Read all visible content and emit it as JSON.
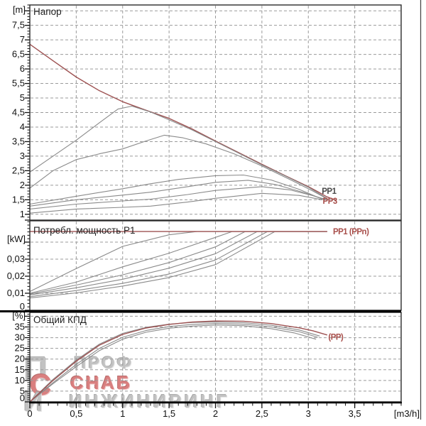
{
  "figure": {
    "background": "#ffffff",
    "plot_border_color": "#2b2b2b",
    "grid_color": "#9b9b9b",
    "axis_color": "#111111",
    "tick_label_color": "#111111",
    "series_colors": {
      "red": "#9e5252",
      "gray": "#8a8a8a"
    },
    "end_label_colors": {
      "red": "#a84f4b",
      "dark": "#4a4a4a"
    },
    "xlabel": "[m3/h]",
    "xlim": [
      0,
      4
    ],
    "xticks": [
      0,
      0.5,
      1,
      1.5,
      2,
      2.5,
      3,
      3.5
    ],
    "xtick_labels": [
      "0",
      "0,5",
      "1",
      "1,5",
      "2",
      "2,5",
      "3",
      "3,5"
    ],
    "x_minor_step": 0.1
  },
  "chart_data": [
    {
      "id": "head",
      "type": "line",
      "title": "Напор",
      "unit": "[m]",
      "ylim": [
        0.8,
        8.2
      ],
      "grid_y": [
        1,
        1.5,
        2,
        2.5,
        3,
        3.5,
        4,
        4.5,
        5,
        5.5,
        6,
        6.5,
        7,
        7.5,
        8
      ],
      "yticks": [
        1,
        1.5,
        2,
        2.5,
        3,
        3.5,
        4,
        4.5,
        5,
        5.5,
        6,
        6.5,
        7,
        7.5
      ],
      "ytick_labels": [
        "1",
        "1,5",
        "2",
        "2,5",
        "3",
        "3,5",
        "4",
        "4,5",
        "5",
        "5,5",
        "6",
        "6,5",
        "7",
        "7,5"
      ],
      "y_minor_step": 0.1,
      "series": [
        {
          "name": "max-speed",
          "color": "red",
          "points": [
            [
              0,
              6.85
            ],
            [
              0.25,
              6.28
            ],
            [
              0.5,
              5.72
            ],
            [
              0.75,
              5.25
            ],
            [
              1,
              4.87
            ],
            [
              1.25,
              4.58
            ],
            [
              1.5,
              4.3
            ],
            [
              1.75,
              3.93
            ],
            [
              2,
              3.52
            ],
            [
              2.25,
              3.12
            ],
            [
              2.5,
              2.72
            ],
            [
              2.75,
              2.33
            ],
            [
              3,
              1.95
            ],
            [
              3.1,
              1.78
            ],
            [
              3.2,
              1.6
            ],
            [
              3.3,
              1.48
            ]
          ]
        },
        {
          "name": "pp3",
          "color": "gray",
          "points": [
            [
              0,
              2.45
            ],
            [
              0.25,
              3.0
            ],
            [
              0.5,
              3.55
            ],
            [
              0.75,
              4.15
            ],
            [
              0.95,
              4.62
            ],
            [
              1.1,
              4.72
            ],
            [
              1.3,
              4.52
            ],
            [
              1.5,
              4.25
            ],
            [
              1.75,
              3.9
            ],
            [
              2,
              3.5
            ],
            [
              2.25,
              3.1
            ],
            [
              2.5,
              2.7
            ],
            [
              2.75,
              2.32
            ],
            [
              3,
              1.93
            ],
            [
              3.2,
              1.55
            ]
          ]
        },
        {
          "name": "pp2",
          "color": "gray",
          "points": [
            [
              0,
              1.9
            ],
            [
              0.25,
              2.5
            ],
            [
              0.5,
              2.88
            ],
            [
              0.75,
              3.08
            ],
            [
              1,
              3.25
            ],
            [
              1.25,
              3.52
            ],
            [
              1.45,
              3.72
            ],
            [
              1.65,
              3.63
            ],
            [
              1.9,
              3.42
            ],
            [
              2.2,
              3.08
            ],
            [
              2.5,
              2.66
            ],
            [
              2.8,
              2.2
            ],
            [
              3.05,
              1.8
            ],
            [
              3.22,
              1.5
            ]
          ]
        },
        {
          "name": "low-1",
          "color": "gray",
          "points": [
            [
              0,
              1.35
            ],
            [
              0.5,
              1.62
            ],
            [
              1,
              1.88
            ],
            [
              1.3,
              2.05
            ],
            [
              1.6,
              2.2
            ],
            [
              2,
              2.33
            ],
            [
              2.3,
              2.35
            ],
            [
              2.6,
              2.18
            ],
            [
              2.9,
              1.86
            ],
            [
              3.15,
              1.52
            ]
          ]
        },
        {
          "name": "low-2",
          "color": "gray",
          "points": [
            [
              0,
              1.28
            ],
            [
              0.5,
              1.5
            ],
            [
              1,
              1.66
            ],
            [
              1.3,
              1.76
            ],
            [
              1.7,
              1.95
            ],
            [
              2,
              2.1
            ],
            [
              2.35,
              2.17
            ],
            [
              2.65,
              2.02
            ],
            [
              2.95,
              1.75
            ],
            [
              3.18,
              1.5
            ]
          ]
        },
        {
          "name": "low-3",
          "color": "gray",
          "points": [
            [
              0,
              1.18
            ],
            [
              0.5,
              1.35
            ],
            [
              1,
              1.46
            ],
            [
              1.3,
              1.52
            ],
            [
              1.7,
              1.68
            ],
            [
              2,
              1.82
            ],
            [
              2.5,
              1.95
            ],
            [
              2.8,
              1.84
            ],
            [
              3.05,
              1.64
            ],
            [
              3.2,
              1.5
            ]
          ]
        },
        {
          "name": "low-4",
          "color": "gray",
          "points": [
            [
              0,
              1.04
            ],
            [
              0.5,
              1.18
            ],
            [
              1,
              1.24
            ],
            [
              1.3,
              1.28
            ],
            [
              1.7,
              1.42
            ],
            [
              2,
              1.55
            ],
            [
              2.5,
              1.72
            ],
            [
              2.9,
              1.65
            ],
            [
              3.15,
              1.5
            ]
          ]
        }
      ],
      "end_labels": [
        {
          "text": "РР1",
          "x": 3.13,
          "y": 1.8,
          "color": "dark"
        },
        {
          "text": "РР3",
          "x": 3.14,
          "y": 1.46,
          "color": "red"
        }
      ]
    },
    {
      "id": "power",
      "type": "line",
      "title": "Потребл. мощность P1",
      "unit": "[kW]",
      "ylim": [
        0,
        0.0525
      ],
      "grid_y": [
        0.01,
        0.02,
        0.03,
        0.04
      ],
      "yticks": [
        0,
        0.01,
        0.02,
        0.03
      ],
      "ytick_labels": [
        "0",
        "0,01",
        "0,02",
        "0,03"
      ],
      "y_minor_step": 0.002,
      "series": [
        {
          "name": "g1",
          "color": "gray",
          "points": [
            [
              0,
              0.011
            ],
            [
              0.5,
              0.0245
            ],
            [
              1,
              0.0375
            ],
            [
              1.5,
              0.0443
            ],
            [
              1.8,
              0.0462
            ],
            [
              3.2,
              0.0462
            ]
          ]
        },
        {
          "name": "g2",
          "color": "gray",
          "points": [
            [
              0,
              0.01
            ],
            [
              0.5,
              0.0165
            ],
            [
              1,
              0.0255
            ],
            [
              1.5,
              0.0335
            ],
            [
              2,
              0.0428
            ],
            [
              2.18,
              0.0462
            ],
            [
              3.2,
              0.0462
            ]
          ]
        },
        {
          "name": "g3",
          "color": "gray",
          "points": [
            [
              0,
              0.0095
            ],
            [
              0.5,
              0.0148
            ],
            [
              1,
              0.0208
            ],
            [
              1.5,
              0.028
            ],
            [
              2,
              0.0372
            ],
            [
              2.32,
              0.0462
            ],
            [
              3.2,
              0.0462
            ]
          ]
        },
        {
          "name": "g4",
          "color": "gray",
          "points": [
            [
              0,
              0.009
            ],
            [
              0.5,
              0.0132
            ],
            [
              1,
              0.0182
            ],
            [
              1.5,
              0.0247
            ],
            [
              2,
              0.0332
            ],
            [
              2.45,
              0.0462
            ],
            [
              3.2,
              0.0462
            ]
          ]
        },
        {
          "name": "g5",
          "color": "gray",
          "points": [
            [
              0,
              0.008
            ],
            [
              0.5,
              0.0116
            ],
            [
              1,
              0.0158
            ],
            [
              1.5,
              0.0213
            ],
            [
              2,
              0.0295
            ],
            [
              2.56,
              0.0462
            ],
            [
              3.2,
              0.0462
            ]
          ]
        },
        {
          "name": "g6",
          "color": "gray",
          "points": [
            [
              0,
              0.0072
            ],
            [
              0.5,
              0.0102
            ],
            [
              1,
              0.0142
            ],
            [
              1.5,
              0.0192
            ],
            [
              2,
              0.0268
            ],
            [
              2.64,
              0.0462
            ],
            [
              3.2,
              0.0462
            ]
          ]
        },
        {
          "name": "max-speed",
          "color": "red",
          "points": [
            [
              0,
              0.0462
            ],
            [
              3.2,
              0.0462
            ]
          ]
        }
      ],
      "end_labels": [
        {
          "text": "РР1 (РРn)",
          "x": 3.25,
          "y": 0.0462,
          "color": "red"
        }
      ]
    },
    {
      "id": "efficiency",
      "type": "line",
      "title": "Общий КПД",
      "unit": "[%]",
      "ylim": [
        0,
        41.8
      ],
      "grid_y": [
        5,
        10,
        15,
        20,
        25,
        30,
        35,
        40
      ],
      "yticks": [
        0,
        5,
        10,
        15,
        20,
        25,
        30,
        35
      ],
      "ytick_labels": [
        "0",
        "5",
        "10",
        "15",
        "20",
        "25",
        "30",
        "35"
      ],
      "y_minor_step": 1,
      "series": [
        {
          "name": "e1",
          "color": "gray",
          "points": [
            [
              0,
              0
            ],
            [
              0.25,
              10.5
            ],
            [
              0.5,
              19.5
            ],
            [
              0.75,
              27
            ],
            [
              1,
              32
            ],
            [
              1.25,
              34.8
            ],
            [
              1.5,
              36.3
            ],
            [
              1.75,
              37.1
            ],
            [
              2,
              37.3
            ],
            [
              2.3,
              37
            ],
            [
              2.6,
              35.8
            ],
            [
              2.9,
              33.6
            ],
            [
              3.12,
              30.8
            ]
          ]
        },
        {
          "name": "e2",
          "color": "gray",
          "points": [
            [
              0,
              0
            ],
            [
              0.25,
              9
            ],
            [
              0.5,
              17.5
            ],
            [
              0.75,
              25
            ],
            [
              1,
              30.2
            ],
            [
              1.25,
              33.3
            ],
            [
              1.5,
              35.2
            ],
            [
              1.75,
              36.2
            ],
            [
              2,
              36.6
            ],
            [
              2.3,
              36.3
            ],
            [
              2.6,
              35
            ],
            [
              2.9,
              32.8
            ],
            [
              3.1,
              30.2
            ]
          ]
        },
        {
          "name": "e3",
          "color": "gray",
          "points": [
            [
              0,
              0
            ],
            [
              0.25,
              8.5
            ],
            [
              0.5,
              16.5
            ],
            [
              0.75,
              24
            ],
            [
              1,
              29.3
            ],
            [
              1.25,
              32.5
            ],
            [
              1.5,
              34.4
            ],
            [
              1.75,
              35.4
            ],
            [
              2,
              35.9
            ],
            [
              2.3,
              35.6
            ],
            [
              2.6,
              34.2
            ],
            [
              2.85,
              32.2
            ],
            [
              3.08,
              29.3
            ]
          ]
        },
        {
          "name": "max-speed",
          "color": "red",
          "points": [
            [
              0,
              0
            ],
            [
              0.25,
              10
            ],
            [
              0.5,
              19
            ],
            [
              0.75,
              26.5
            ],
            [
              1,
              31.5
            ],
            [
              1.25,
              34.5
            ],
            [
              1.5,
              36.2
            ],
            [
              1.75,
              37.3
            ],
            [
              2,
              37.8
            ],
            [
              2.3,
              37.7
            ],
            [
              2.6,
              36.6
            ],
            [
              2.9,
              34.6
            ],
            [
              3.05,
              33.2
            ],
            [
              3.2,
              31.3
            ]
          ]
        }
      ],
      "end_labels": [
        {
          "text": "(РР)",
          "x": 3.2,
          "y": 30.3,
          "color": "red"
        }
      ]
    }
  ],
  "watermark": {
    "glyph_p": "П",
    "glyph_c": "С",
    "glyph_i": "И",
    "line1": "ПРОФ",
    "line2": "СНАБ",
    "line3": "ИНЖИНИРИНГ",
    "gray": "#b4b4b4",
    "red": "#d06060"
  }
}
